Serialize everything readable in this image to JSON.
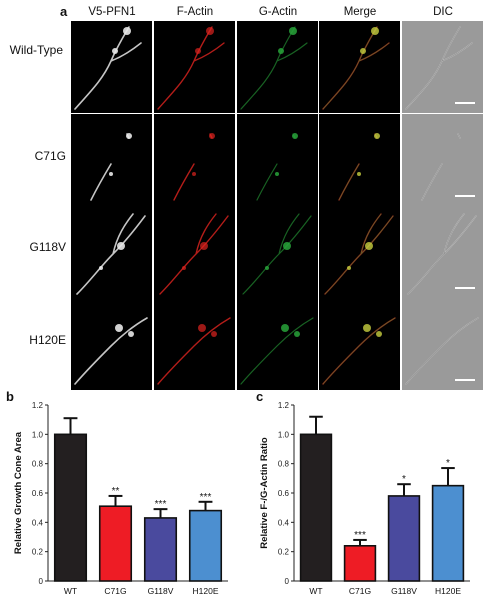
{
  "figure": {
    "panel_a": "a",
    "panel_b": "b",
    "panel_c": "c",
    "columns": [
      "V5-PFN1",
      "F-Actin",
      "G-Actin",
      "Merge",
      "DIC"
    ],
    "rows": [
      "Wild-Type",
      "C71G",
      "G118V",
      "H120E"
    ]
  },
  "colors": {
    "WT": "#231f20",
    "C71G": "#ee1c25",
    "G118V": "#4a4a9e",
    "H120E": "#4c8fd0",
    "factin": "#e0241f",
    "gactin": "#28a33a",
    "v5": "#e8e8e8"
  },
  "chart_data": [
    {
      "type": "bar",
      "panel": "b",
      "ylabel": "Relative Growth Cone Area",
      "xlabel": "",
      "categories": [
        "WT",
        "C71G",
        "G118V",
        "H120E"
      ],
      "values": [
        1.0,
        0.51,
        0.43,
        0.48
      ],
      "errors": [
        0.11,
        0.07,
        0.06,
        0.06
      ],
      "significance": [
        "",
        "**",
        "***",
        "***"
      ],
      "ylim": [
        0,
        1.2
      ],
      "yticks": [
        "0",
        "0.2",
        "0.4",
        "0.6",
        "0.8",
        "1.0",
        "1.2"
      ]
    },
    {
      "type": "bar",
      "panel": "c",
      "ylabel": "Relative F-/G-Actin Ratio",
      "xlabel": "",
      "categories": [
        "WT",
        "C71G",
        "G118V",
        "H120E"
      ],
      "values": [
        1.0,
        0.24,
        0.58,
        0.65
      ],
      "errors": [
        0.12,
        0.04,
        0.08,
        0.12
      ],
      "significance": [
        "",
        "***",
        "*",
        "*"
      ],
      "ylim": [
        0,
        1.2
      ],
      "yticks": [
        "0",
        "0.2",
        "0.4",
        "0.6",
        "0.8",
        "1.0",
        "1.2"
      ]
    }
  ]
}
